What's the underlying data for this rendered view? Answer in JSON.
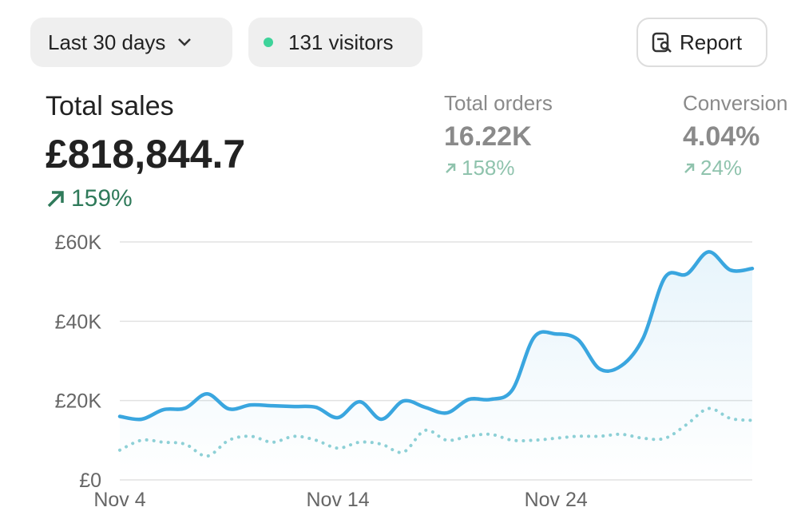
{
  "toolbar": {
    "range": "Last 30 days",
    "visitors": "131 visitors",
    "report": "Report"
  },
  "metrics": [
    {
      "label": "Total sales",
      "value": "£818,844.7",
      "change": "159%"
    },
    {
      "label": "Total orders",
      "value": "16.22K",
      "change": "158%"
    },
    {
      "label": "Conversion",
      "value": "4.04%",
      "change": "24%"
    }
  ],
  "chart_data": {
    "type": "line",
    "categories": [
      "Nov 4",
      null,
      null,
      null,
      null,
      null,
      null,
      null,
      null,
      null,
      "Nov 14",
      null,
      null,
      null,
      null,
      null,
      null,
      null,
      null,
      null,
      "Nov 24",
      null,
      null,
      null,
      null,
      null,
      null,
      null,
      null,
      null
    ],
    "series": [
      {
        "color": "#3aa6df",
        "style": "solid",
        "values": [
          16000,
          15300,
          17700,
          18100,
          21700,
          17900,
          18900,
          18700,
          18500,
          18300,
          15700,
          19700,
          15300,
          19900,
          18300,
          16900,
          20300,
          20300,
          22700,
          36000,
          36800,
          35400,
          28000,
          28800,
          35800,
          51100,
          51900,
          57500,
          52900,
          53300
        ]
      },
      {
        "color": "#8fd1d6",
        "style": "dotted",
        "values": [
          7500,
          10000,
          9500,
          9000,
          6000,
          10000,
          11000,
          9500,
          11000,
          10000,
          8000,
          9500,
          9000,
          7000,
          12500,
          10000,
          11000,
          11500,
          10000,
          10000,
          10500,
          11000,
          11000,
          11500,
          10500,
          10500,
          14000,
          18000,
          15500,
          15000
        ]
      }
    ],
    "ylim": [
      0,
      60000
    ],
    "yticks": [
      {
        "value": 0,
        "label": "£0"
      },
      {
        "value": 20000,
        "label": "£20K"
      },
      {
        "value": 40000,
        "label": "£40K"
      },
      {
        "value": 60000,
        "label": "£60K"
      }
    ],
    "grid": true
  }
}
